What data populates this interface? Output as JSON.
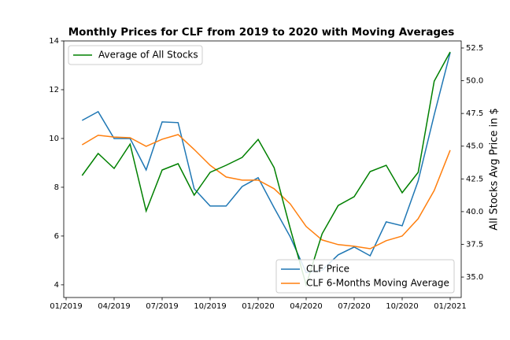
{
  "chart_data": {
    "type": "line",
    "title": "Monthly Prices for CLF from 2019 to 2020 with Moving Averages",
    "y2_label": "All Stocks Avg Price in $",
    "x": [
      "2019-01",
      "2019-02",
      "2019-03",
      "2019-04",
      "2019-05",
      "2019-06",
      "2019-07",
      "2019-08",
      "2019-09",
      "2019-10",
      "2019-11",
      "2019-12",
      "2020-01",
      "2020-02",
      "2020-03",
      "2020-04",
      "2020-05",
      "2020-06",
      "2020-07",
      "2020-08",
      "2020-09",
      "2020-10",
      "2020-11",
      "2020-12"
    ],
    "series": [
      {
        "name": "CLF Price",
        "color": "#1f77b4",
        "axis": "y",
        "values": [
          10.74,
          11.1,
          10.0,
          10.0,
          8.71,
          10.68,
          10.65,
          7.94,
          7.23,
          7.23,
          8.03,
          8.39,
          7.16,
          5.97,
          4.5,
          4.6,
          5.23,
          5.55,
          5.19,
          6.58,
          6.42,
          8.26,
          10.97,
          13.52
        ]
      },
      {
        "name": "CLF 6-Months Moving Average",
        "color": "#ff7f0e",
        "axis": "y",
        "values": [
          9.74,
          10.13,
          10.06,
          10.03,
          9.68,
          9.97,
          10.16,
          9.55,
          8.9,
          8.42,
          8.29,
          8.29,
          7.94,
          7.32,
          6.39,
          5.84,
          5.65,
          5.58,
          5.48,
          5.81,
          6.0,
          6.71,
          7.87,
          9.52
        ]
      },
      {
        "name": "Average of All Stocks",
        "color": "#008000",
        "axis": "y2",
        "values": [
          42.76,
          44.44,
          43.3,
          45.16,
          40.05,
          43.18,
          43.66,
          41.26,
          43.0,
          43.54,
          44.14,
          45.52,
          43.36,
          38.73,
          34.4,
          38.31,
          40.47,
          41.14,
          43.06,
          43.54,
          41.44,
          43.0,
          49.97,
          52.2
        ]
      }
    ],
    "xticks": [
      {
        "value": "2019-01",
        "label": "01/2019"
      },
      {
        "value": "2019-04",
        "label": "04/2019"
      },
      {
        "value": "2019-07",
        "label": "07/2019"
      },
      {
        "value": "2019-10",
        "label": "10/2019"
      },
      {
        "value": "2020-01",
        "label": "01/2020"
      },
      {
        "value": "2020-04",
        "label": "04/2020"
      },
      {
        "value": "2020-07",
        "label": "07/2020"
      },
      {
        "value": "2020-10",
        "label": "10/2020"
      },
      {
        "value": "2021-01",
        "label": "01/2021"
      }
    ],
    "ylim": [
      3.48,
      14.0
    ],
    "yticks": [
      4,
      6,
      8,
      10,
      12,
      14
    ],
    "y2lim": [
      33.44,
      53.04
    ],
    "y2ticks": [
      {
        "value": 35,
        "label": "35.0"
      },
      37.5,
      {
        "value": 40,
        "label": "40.0"
      },
      42.5,
      {
        "value": 45,
        "label": "45.0"
      },
      47.5,
      {
        "value": 50,
        "label": "50.0"
      },
      52.5
    ],
    "legend": {
      "y": "lower right",
      "y2": "upper left"
    }
  }
}
